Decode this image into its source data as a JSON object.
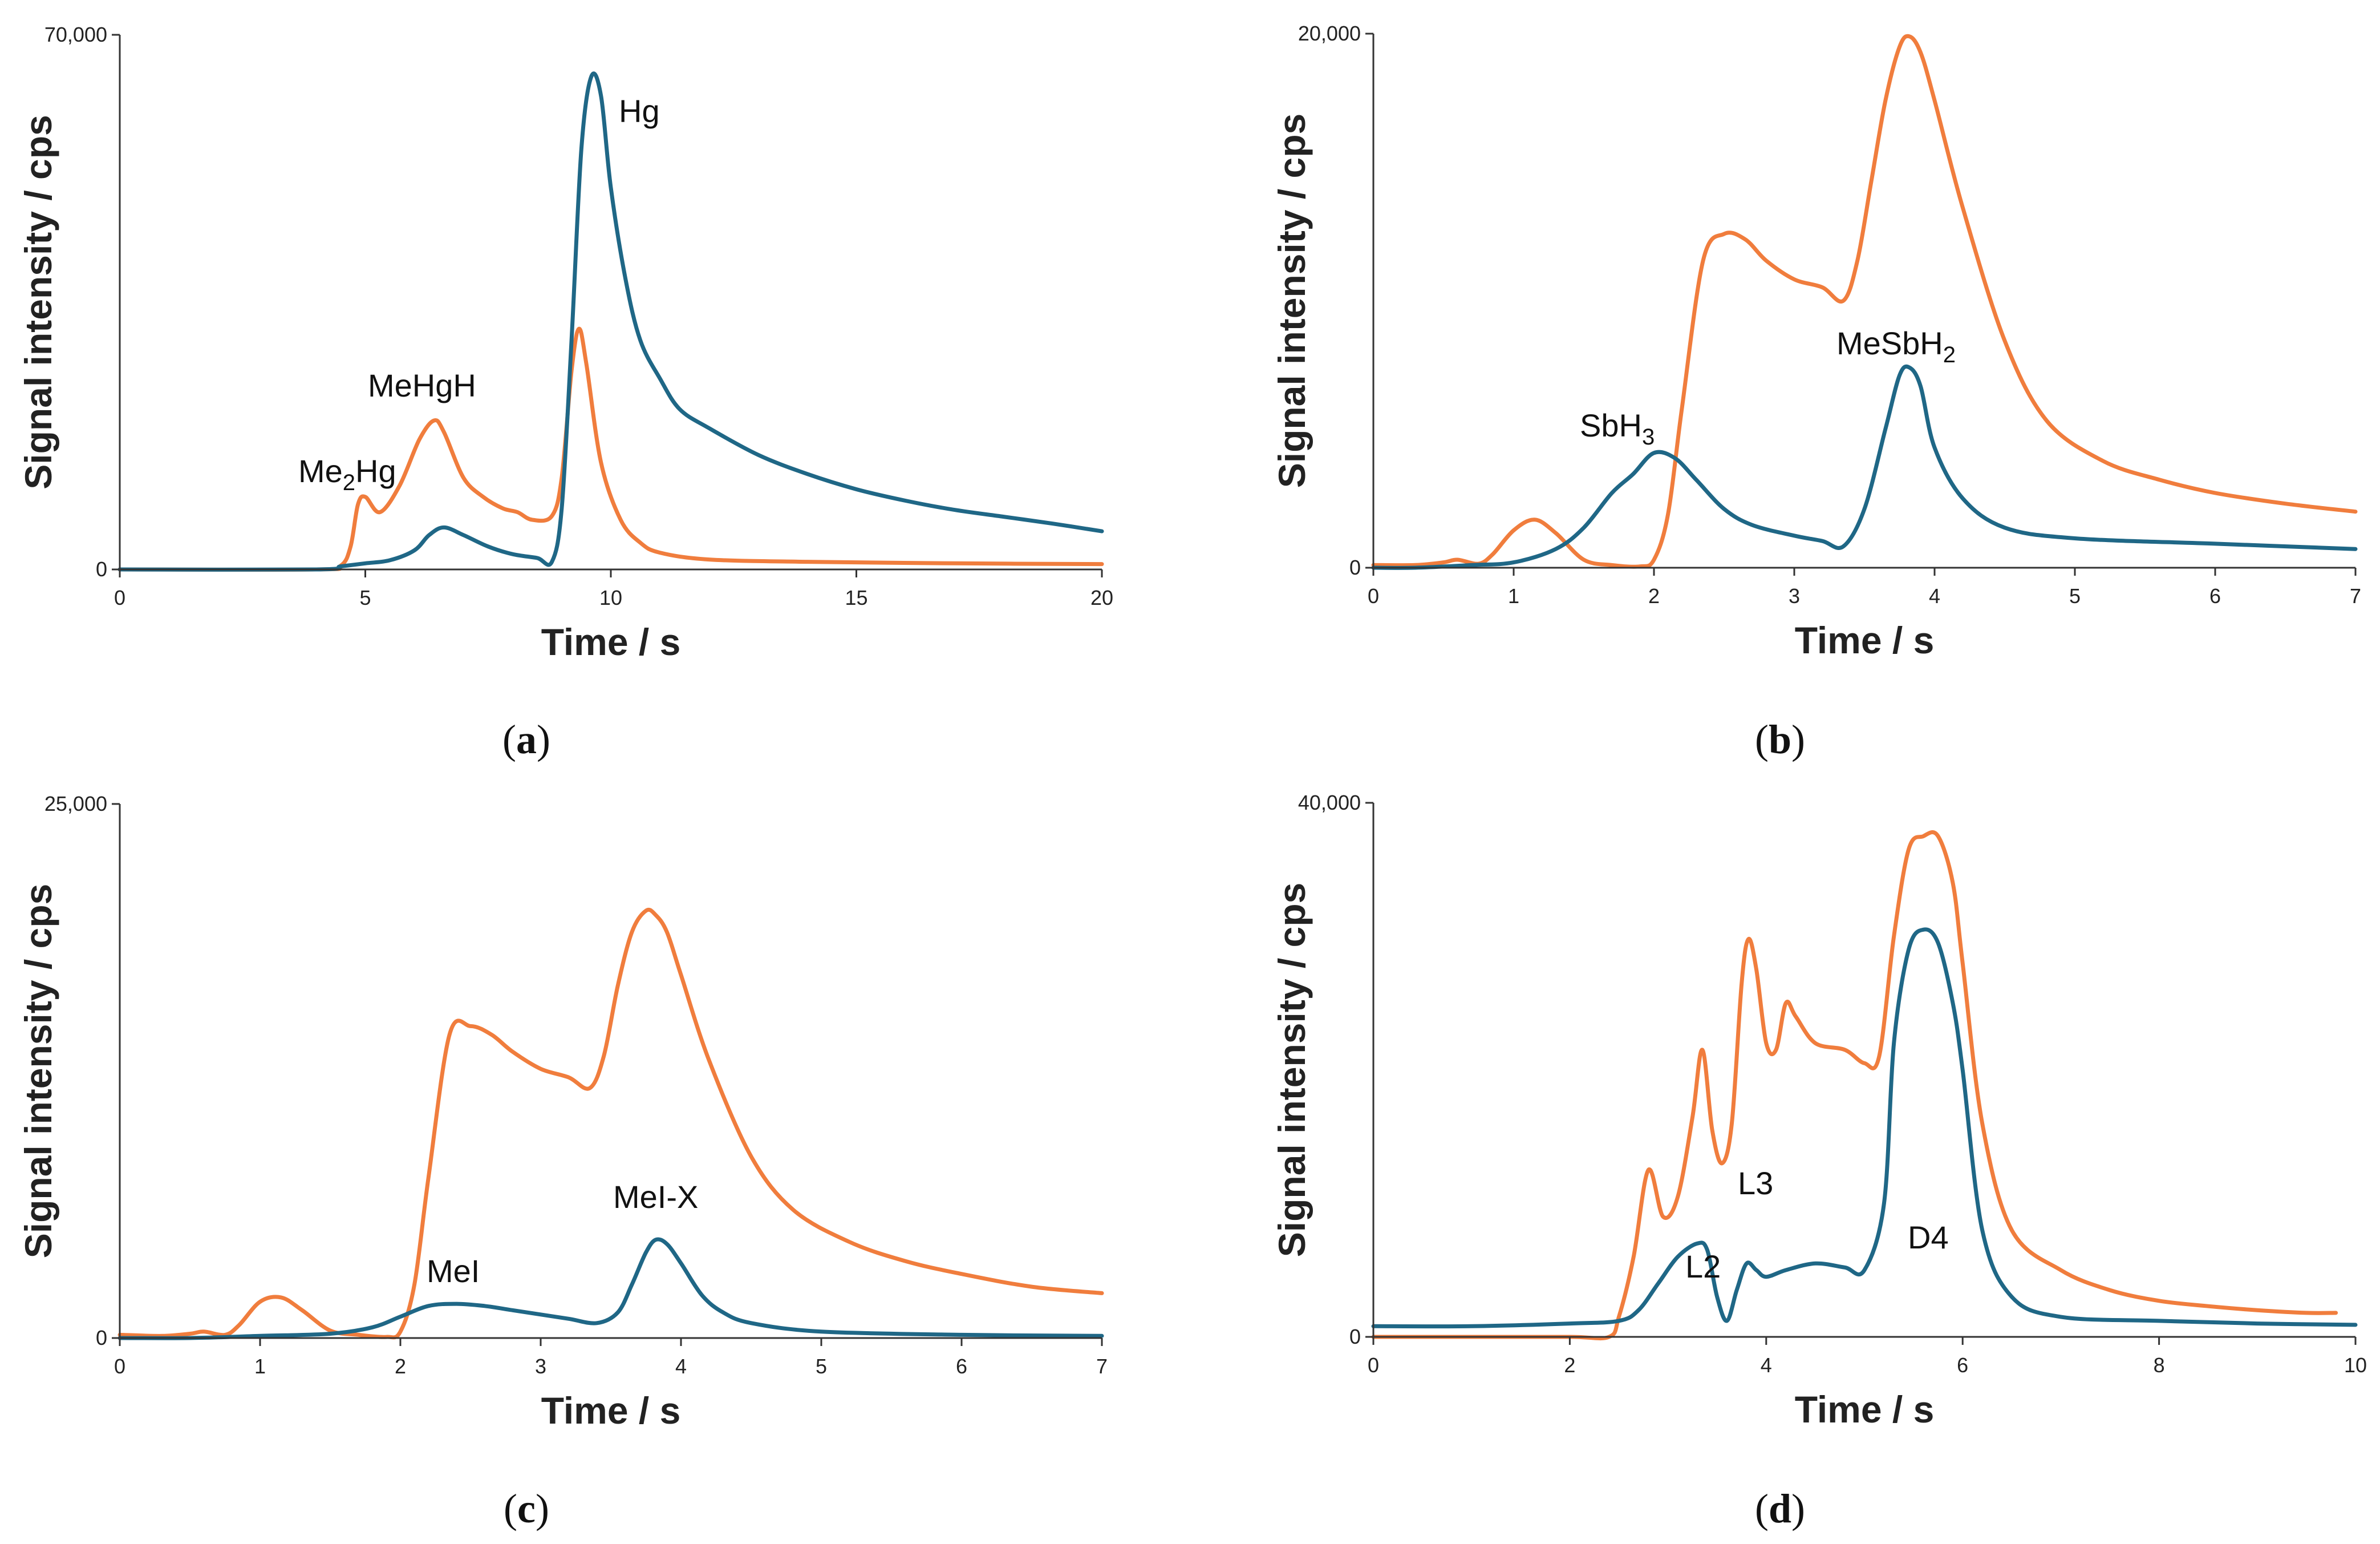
{
  "colors": {
    "orange": "#F07D3D",
    "blue": "#1F6786",
    "axis": "#333333"
  },
  "chart_data": [
    {
      "type": "line",
      "panel": "a",
      "caption": {
        "open": "(",
        "letter": "a",
        "close": ")"
      },
      "xlabel": "Time / s",
      "ylabel": "Signal intensity / cps",
      "xlim": [
        0,
        20
      ],
      "ylim": [
        0,
        70000
      ],
      "xticks": [
        0,
        5,
        10,
        15,
        20
      ],
      "ytick_labels": [
        "0",
        "70,000"
      ],
      "series": [
        {
          "name": "orange",
          "color": "#F07D3D",
          "x": [
            0,
            4,
            4.5,
            4.7,
            4.85,
            5.0,
            5.3,
            5.7,
            6.1,
            6.4,
            6.6,
            7.0,
            7.4,
            7.8,
            8.1,
            8.4,
            8.8,
            9.0,
            9.2,
            9.35,
            9.5,
            9.8,
            10.2,
            10.6,
            11,
            12,
            14,
            17,
            20
          ],
          "y": [
            0,
            0,
            500,
            3000,
            8500,
            9500,
            7500,
            11000,
            17000,
            19500,
            18000,
            12000,
            9500,
            8000,
            7500,
            6500,
            7000,
            12000,
            26000,
            31500,
            27000,
            14000,
            6500,
            3500,
            2200,
            1300,
            1000,
            800,
            700
          ]
        },
        {
          "name": "blue",
          "color": "#1F6786",
          "x": [
            0,
            4,
            4.5,
            5.0,
            5.5,
            6.0,
            6.3,
            6.6,
            7.0,
            7.5,
            8.0,
            8.5,
            8.8,
            9.0,
            9.2,
            9.4,
            9.6,
            9.8,
            10.0,
            10.3,
            10.6,
            11.0,
            11.4,
            12,
            13,
            14,
            15,
            16,
            17,
            18,
            19,
            20
          ],
          "y": [
            0,
            0,
            400,
            800,
            1200,
            2500,
            4500,
            5500,
            4500,
            3000,
            2000,
            1500,
            1000,
            8000,
            30000,
            55000,
            64500,
            62000,
            50000,
            38000,
            30000,
            25000,
            21000,
            18500,
            15000,
            12500,
            10500,
            9000,
            7800,
            6900,
            6000,
            5000
          ]
        }
      ],
      "annotations": [
        {
          "parts": [
            "Hg"
          ]
        },
        {
          "parts": [
            "MeHgH"
          ]
        },
        {
          "parts": [
            "Me",
            "2",
            "Hg"
          ]
        }
      ]
    },
    {
      "type": "line",
      "panel": "b",
      "caption": {
        "open": "(",
        "letter": "b",
        "close": ")"
      },
      "xlabel": "Time / s",
      "ylabel": "Signal intensity / cps",
      "xlim": [
        0,
        7
      ],
      "ylim": [
        0,
        20000
      ],
      "xticks": [
        0,
        1,
        2,
        3,
        4,
        5,
        6,
        7
      ],
      "ytick_labels": [
        "0",
        "20,000"
      ],
      "series": [
        {
          "name": "orange",
          "color": "#F07D3D",
          "x": [
            0,
            0.3,
            0.5,
            0.6,
            0.75,
            0.85,
            1.0,
            1.15,
            1.3,
            1.5,
            1.7,
            1.9,
            2.0,
            2.1,
            2.2,
            2.35,
            2.5,
            2.65,
            2.8,
            3.0,
            3.2,
            3.35,
            3.45,
            3.55,
            3.65,
            3.75,
            3.82,
            3.9,
            4.0,
            4.2,
            4.5,
            4.8,
            5.2,
            5.6,
            6.0,
            6.5,
            7.0
          ],
          "y": [
            100,
            100,
            200,
            300,
            150,
            500,
            1400,
            1800,
            1300,
            300,
            100,
            50,
            300,
            2000,
            6000,
            11500,
            12500,
            12300,
            11500,
            10800,
            10500,
            10000,
            11500,
            14500,
            17500,
            19500,
            19900,
            19300,
            17500,
            13500,
            8500,
            5500,
            4000,
            3300,
            2800,
            2400,
            2100
          ]
        },
        {
          "name": "blue",
          "color": "#1F6786",
          "x": [
            0,
            0.3,
            0.7,
            1.0,
            1.3,
            1.5,
            1.7,
            1.85,
            2.0,
            2.15,
            2.3,
            2.5,
            2.7,
            3.0,
            3.2,
            3.35,
            3.5,
            3.65,
            3.75,
            3.82,
            3.9,
            4.0,
            4.2,
            4.5,
            5.0,
            6.0,
            7.0
          ],
          "y": [
            0,
            0,
            100,
            200,
            700,
            1500,
            2800,
            3500,
            4300,
            4100,
            3300,
            2200,
            1600,
            1200,
            1000,
            800,
            2200,
            5200,
            7200,
            7500,
            6800,
            4500,
            2600,
            1500,
            1100,
            900,
            700
          ]
        }
      ],
      "annotations": [
        {
          "parts": [
            "MeSbH",
            "2"
          ]
        },
        {
          "parts": [
            "SbH",
            "3"
          ]
        }
      ]
    },
    {
      "type": "line",
      "panel": "c",
      "caption": {
        "open": "(",
        "letter": "c",
        "close": ")"
      },
      "xlabel": "Time / s",
      "ylabel": "Signal intensity / cps",
      "xlim": [
        0,
        7
      ],
      "ylim": [
        0,
        25000
      ],
      "xticks": [
        0,
        1,
        2,
        3,
        4,
        5,
        6,
        7
      ],
      "ytick_labels": [
        "0",
        "25,000"
      ],
      "series": [
        {
          "name": "orange",
          "color": "#F07D3D",
          "x": [
            0,
            0.3,
            0.5,
            0.6,
            0.75,
            0.85,
            1.0,
            1.15,
            1.3,
            1.5,
            1.7,
            1.9,
            2.0,
            2.1,
            2.2,
            2.35,
            2.5,
            2.65,
            2.8,
            3.0,
            3.2,
            3.35,
            3.45,
            3.55,
            3.65,
            3.75,
            3.82,
            3.9,
            4.0,
            4.2,
            4.5,
            4.8,
            5.2,
            5.6,
            6.0,
            6.5,
            7.0
          ],
          "y": [
            150,
            100,
            200,
            300,
            150,
            600,
            1700,
            1900,
            1300,
            350,
            150,
            50,
            300,
            2500,
            7500,
            14200,
            14600,
            14200,
            13400,
            12600,
            12200,
            11700,
            13200,
            16500,
            19000,
            20000,
            19800,
            19000,
            17000,
            13000,
            8500,
            6000,
            4500,
            3600,
            3000,
            2400,
            2100
          ]
        },
        {
          "name": "blue",
          "color": "#1F6786",
          "x": [
            0,
            0.5,
            1.0,
            1.5,
            1.8,
            2.0,
            2.2,
            2.4,
            2.6,
            2.8,
            3.0,
            3.2,
            3.4,
            3.55,
            3.65,
            3.75,
            3.82,
            3.9,
            4.0,
            4.15,
            4.3,
            4.5,
            5.0,
            6.0,
            7.0
          ],
          "y": [
            0,
            0,
            100,
            200,
            500,
            1000,
            1500,
            1600,
            1500,
            1300,
            1100,
            900,
            700,
            1200,
            2500,
            4000,
            4600,
            4400,
            3500,
            2000,
            1200,
            700,
            300,
            150,
            100
          ]
        }
      ],
      "annotations": [
        {
          "parts": [
            "MeI-X"
          ]
        },
        {
          "parts": [
            "MeI"
          ]
        }
      ]
    },
    {
      "type": "line",
      "panel": "d",
      "caption": {
        "open": "(",
        "letter": "d",
        "close": ")"
      },
      "xlabel": "Time / s",
      "ylabel": "Signal intensity / cps",
      "xlim": [
        0,
        10
      ],
      "ylim": [
        0,
        40000
      ],
      "xticks": [
        0,
        2,
        4,
        6,
        8,
        10
      ],
      "ytick_labels": [
        "0",
        "40,000"
      ],
      "series": [
        {
          "name": "orange",
          "color": "#F07D3D",
          "x": [
            0,
            1.0,
            2.0,
            2.4,
            2.5,
            2.65,
            2.8,
            2.95,
            3.1,
            3.25,
            3.35,
            3.45,
            3.55,
            3.65,
            3.75,
            3.82,
            3.9,
            4.0,
            4.1,
            4.2,
            4.3,
            4.5,
            4.8,
            5.0,
            5.15,
            5.3,
            5.45,
            5.6,
            5.75,
            5.9,
            6.0,
            6.2,
            6.5,
            7.0,
            7.5,
            8.0,
            8.5,
            9.0,
            9.5,
            9.8
          ],
          "y": [
            0,
            0,
            0,
            0,
            1500,
            6000,
            12500,
            9000,
            10500,
            16500,
            21500,
            15500,
            13000,
            16000,
            26500,
            29800,
            27500,
            22000,
            21500,
            25000,
            24000,
            22000,
            21500,
            20500,
            21000,
            30000,
            36500,
            37500,
            37500,
            34000,
            28000,
            16000,
            8000,
            5000,
            3500,
            2700,
            2300,
            2000,
            1800,
            1800
          ]
        },
        {
          "name": "blue",
          "color": "#1F6786",
          "x": [
            0,
            1.0,
            2.0,
            2.5,
            2.7,
            2.9,
            3.1,
            3.3,
            3.4,
            3.5,
            3.6,
            3.7,
            3.8,
            3.9,
            4.0,
            4.2,
            4.5,
            4.8,
            5.0,
            5.2,
            5.3,
            5.45,
            5.6,
            5.75,
            5.9,
            6.0,
            6.2,
            6.5,
            7.0,
            8.0,
            9.0,
            10.0
          ],
          "y": [
            800,
            800,
            1000,
            1200,
            2000,
            4000,
            6000,
            7000,
            6500,
            3000,
            1200,
            3500,
            5500,
            5000,
            4500,
            5000,
            5500,
            5200,
            5000,
            10000,
            22000,
            29000,
            30500,
            29500,
            25000,
            20000,
            8000,
            3000,
            1500,
            1200,
            1000,
            900
          ]
        }
      ],
      "annotations": [
        {
          "parts": [
            "L2"
          ]
        },
        {
          "parts": [
            "L3"
          ]
        },
        {
          "parts": [
            "D4"
          ]
        }
      ]
    }
  ]
}
